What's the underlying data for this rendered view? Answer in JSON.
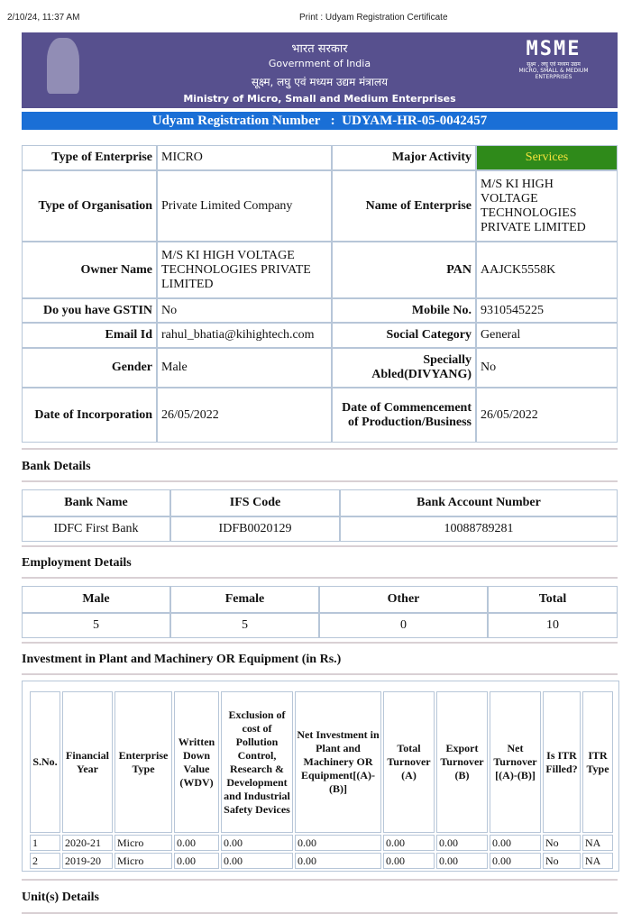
{
  "print_header": {
    "datetime": "2/10/24, 11:37 AM",
    "title": "Print : Udyam Registration Certificate"
  },
  "banner": {
    "hindi_gov": "भारत सरकार",
    "gov": "Government of India",
    "hindi_ministry": "सूक्ष्म, लघु एवं मध्यम उद्यम मंत्रालय",
    "ministry": "Ministry of Micro, Small and Medium Enterprises",
    "logo": "MSME",
    "logo_hindi": "सूक्ष्म , लघु एवं मध्यम उद्यम",
    "logo_sub": "MICRO, SMALL & MEDIUM ENTERPRISES"
  },
  "registration": {
    "label": "Udyam Registration Number",
    "sep": ":",
    "number": "UDYAM-HR-05-0042457"
  },
  "details": [
    [
      "Type of Enterprise",
      "MICRO",
      "Major Activity",
      "Services"
    ],
    [
      "Type of Organisation",
      "Private Limited Company",
      "Name of Enterprise",
      "M/S KI HIGH VOLTAGE TECHNOLOGIES PRIVATE LIMITED"
    ],
    [
      "Owner Name",
      "M/S KI HIGH VOLTAGE TECHNOLOGIES PRIVATE LIMITED",
      "PAN",
      "AAJCK5558K"
    ],
    [
      "Do you have GSTIN",
      "No",
      "Mobile No.",
      "9310545225"
    ],
    [
      "Email Id",
      "rahul_bhatia@kihightech.com",
      "Social Category",
      "General"
    ],
    [
      "Gender",
      "Male",
      "Specially Abled(DIVYANG)",
      "No"
    ],
    [
      "Date of Incorporation",
      "26/05/2022",
      "Date of Commencement of Production/Business",
      "26/05/2022"
    ]
  ],
  "bank": {
    "title": "Bank Details",
    "headers": [
      "Bank Name",
      "IFS Code",
      "Bank Account Number"
    ],
    "row": [
      "IDFC First Bank",
      "IDFB0020129",
      "10088789281"
    ]
  },
  "employment": {
    "title": "Employment Details",
    "headers": [
      "Male",
      "Female",
      "Other",
      "Total"
    ],
    "row": [
      "5",
      "5",
      "0",
      "10"
    ]
  },
  "investment": {
    "title": "Investment in Plant and Machinery OR Equipment (in Rs.)",
    "headers": [
      "S.No.",
      "Financial Year",
      "Enterprise Type",
      "Written Down Value (WDV)",
      "Exclusion of cost of Pollution Control, Research & Development and Industrial Safety Devices",
      "Net Investment in Plant and Machinery OR Equipment[(A)-(B)]",
      "Total Turnover (A)",
      "Export Turnover (B)",
      "Net Turnover [(A)-(B)]",
      "Is ITR Filled?",
      "ITR Type"
    ],
    "rows": [
      [
        "1",
        "2020-21",
        "Micro",
        "0.00",
        "0.00",
        "0.00",
        "0.00",
        "0.00",
        "0.00",
        "No",
        "NA"
      ],
      [
        "2",
        "2019-20",
        "Micro",
        "0.00",
        "0.00",
        "0.00",
        "0.00",
        "0.00",
        "0.00",
        "No",
        "NA"
      ]
    ]
  },
  "units": {
    "title": "Unit(s) Details"
  },
  "colors": {
    "banner": "#57508e",
    "reg_bar": "#1a6fd6",
    "services_bg": "#2f8a1a",
    "services_text": "#f3e23c"
  }
}
